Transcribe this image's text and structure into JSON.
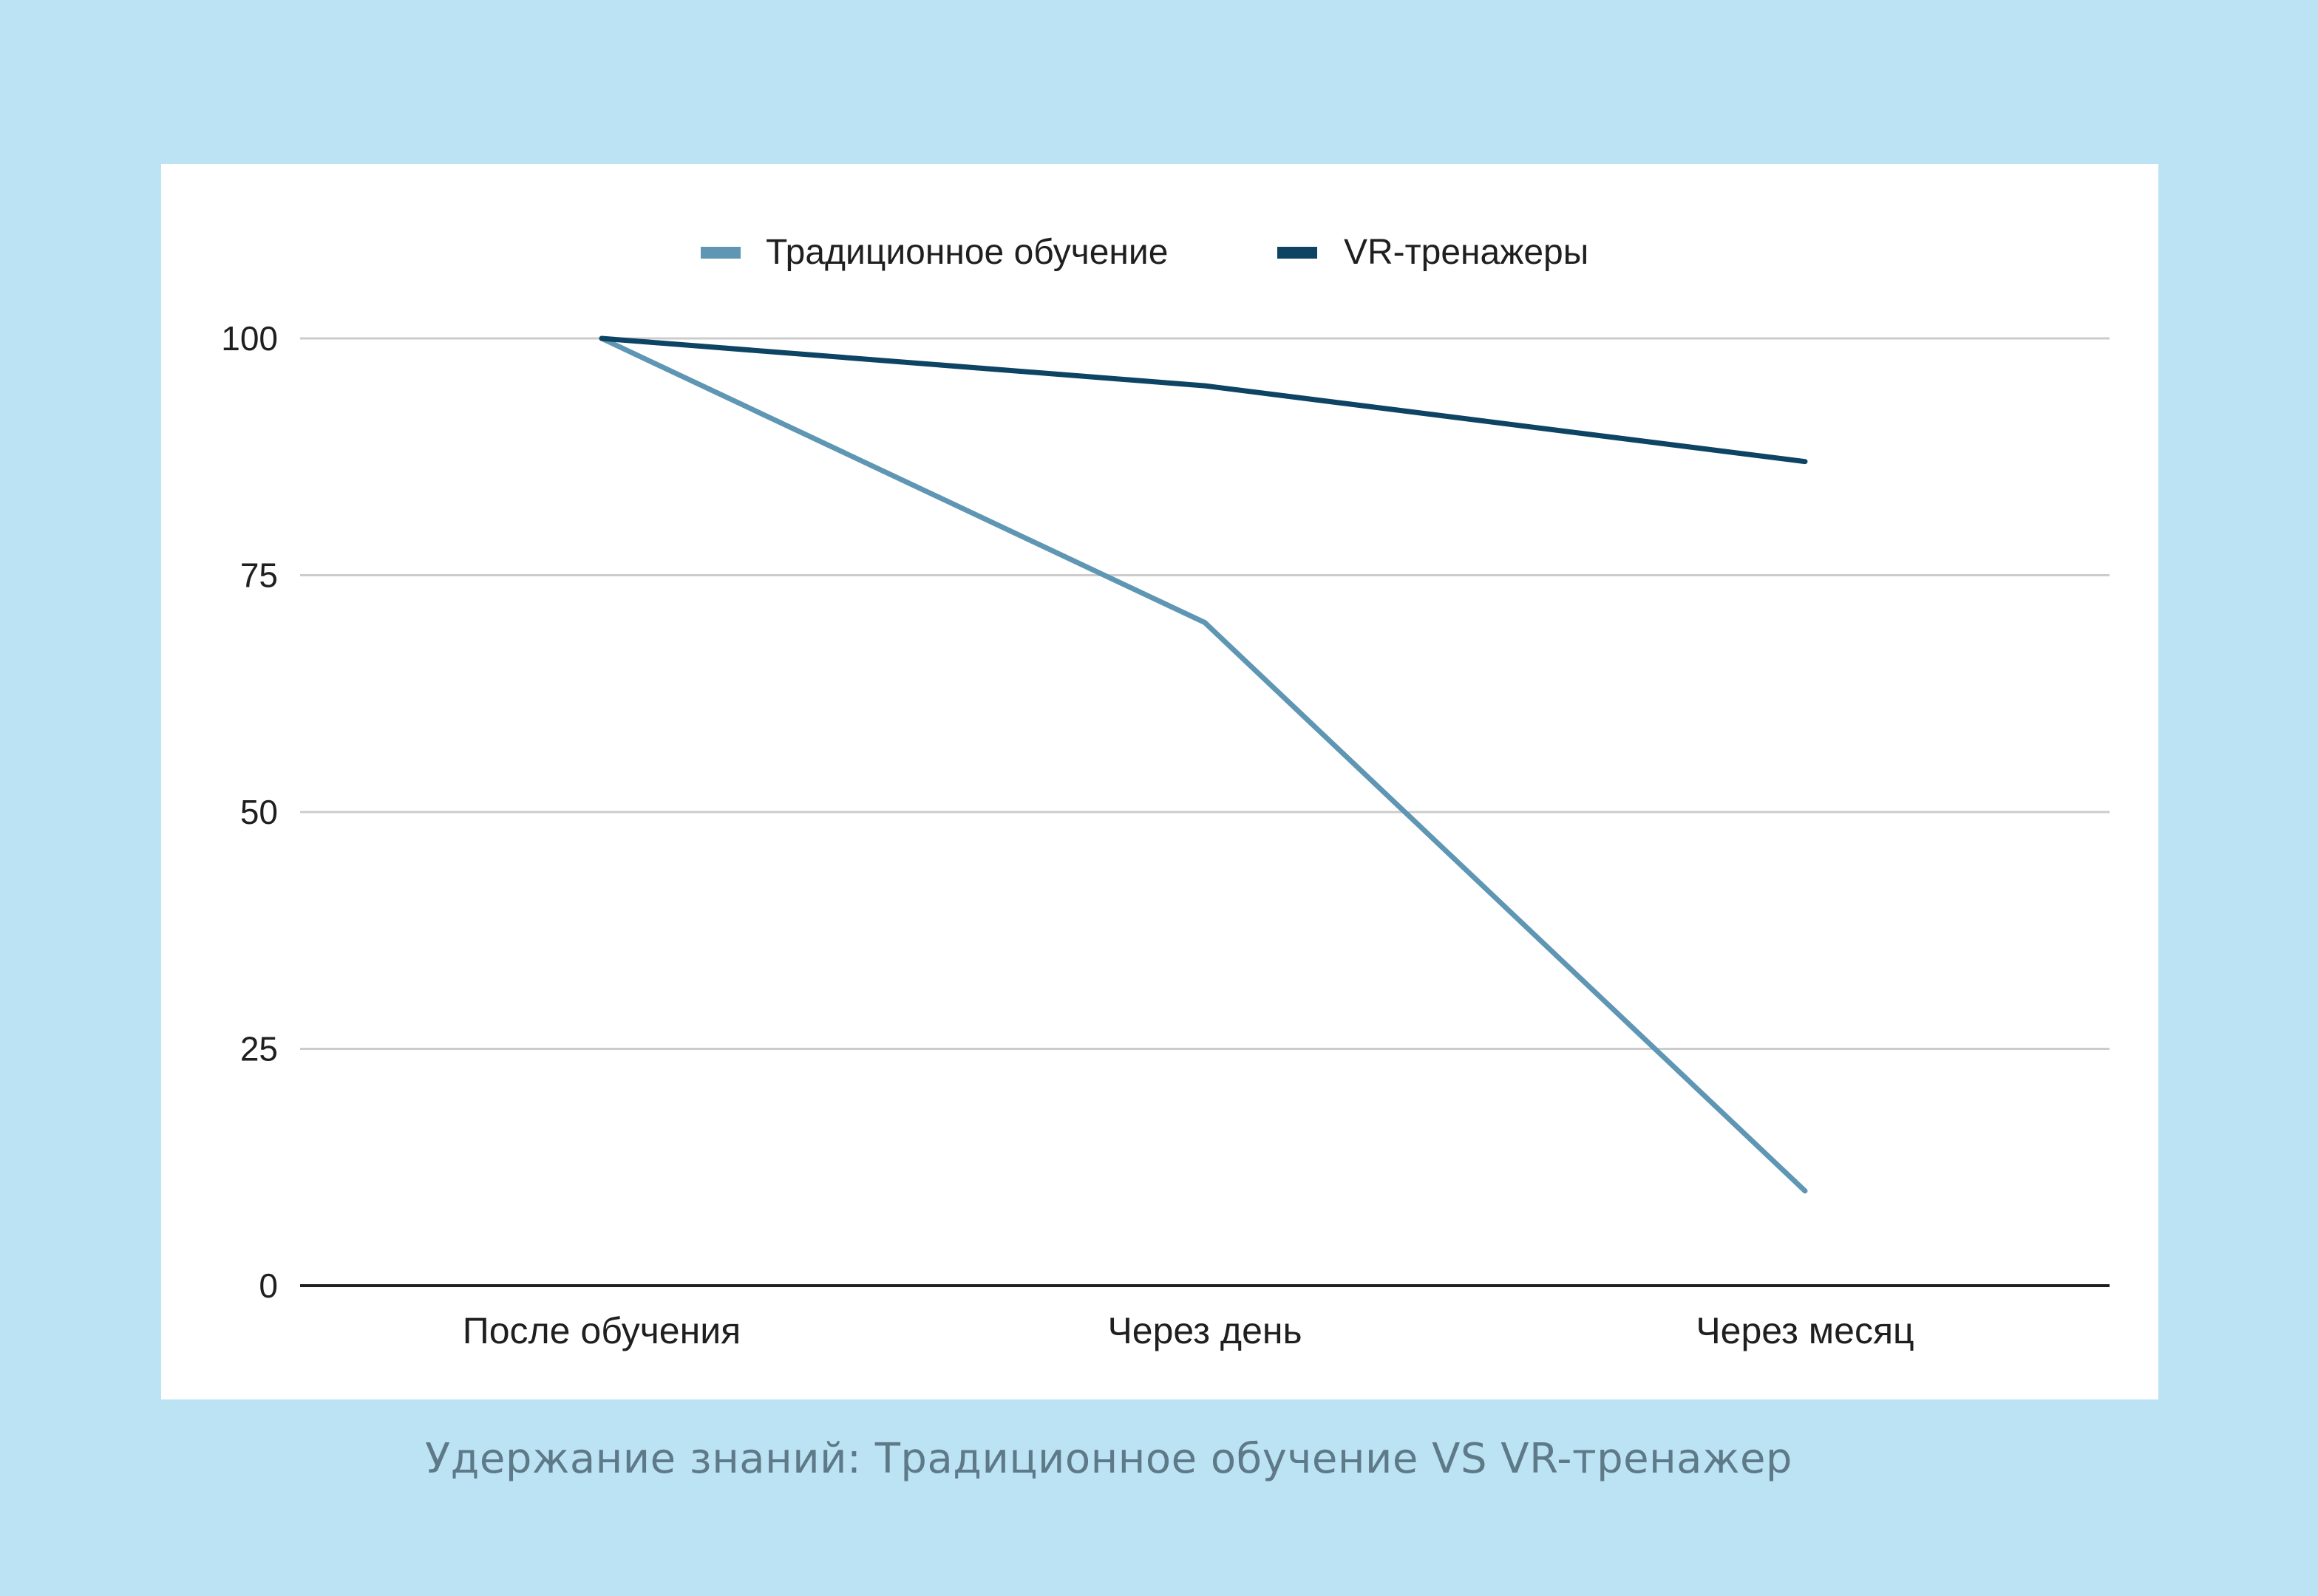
{
  "caption": "Удержание знаний: Традиционное обучение VS VR-тренажер",
  "colors": {
    "background": "#bce3f4",
    "card": "#ffffff",
    "traditional": "#5e96b3",
    "vr": "#0d4463",
    "grid": "#cccccc",
    "axis": "#1f1f1f",
    "caption": "#5e7a88"
  },
  "chart_data": {
    "type": "line",
    "categories": [
      "После обучения",
      "Через день",
      "Через месяц"
    ],
    "series": [
      {
        "name": "Традиционное обучение",
        "values": [
          100,
          70,
          10
        ],
        "color": "#5e96b3"
      },
      {
        "name": "VR-тренажеры",
        "values": [
          100,
          95,
          87
        ],
        "color": "#0d4463"
      }
    ],
    "yticks": [
      0,
      25,
      50,
      75,
      100
    ],
    "ylim": [
      0,
      100
    ],
    "grid": true,
    "legend_position": "top-center",
    "title": "",
    "xlabel": "",
    "ylabel": ""
  }
}
